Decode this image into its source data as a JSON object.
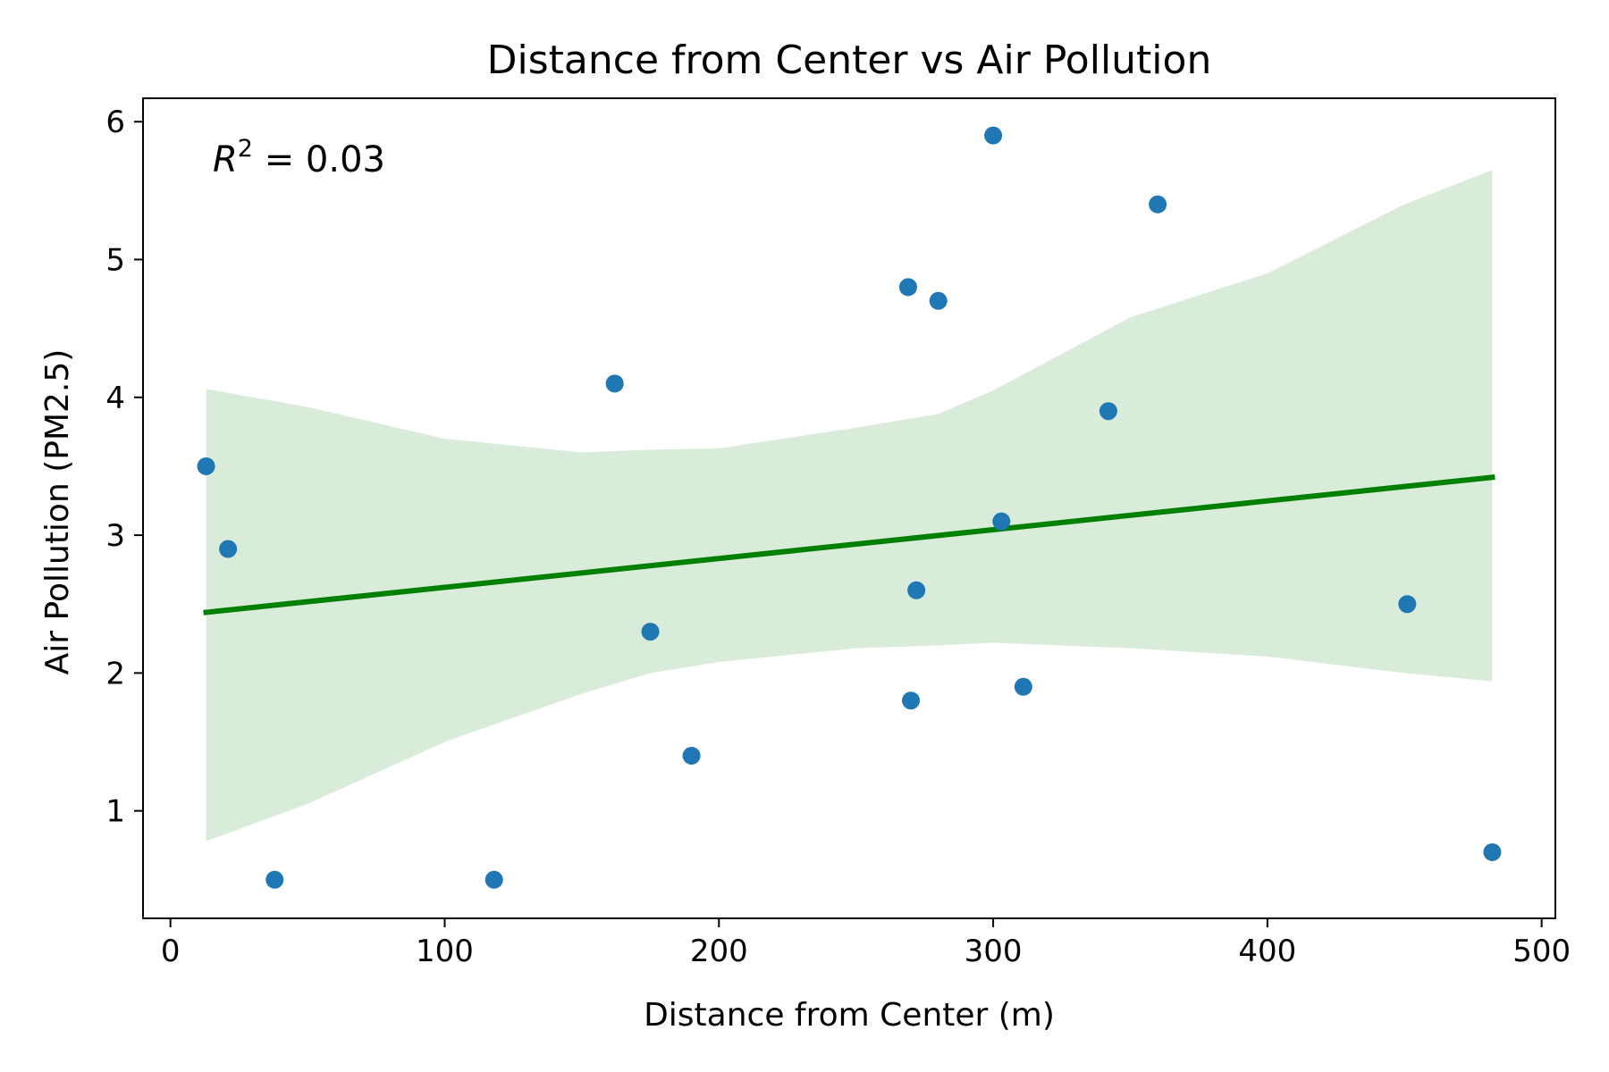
{
  "chart_data": {
    "type": "scatter",
    "title": "Distance from Center vs Air Pollution",
    "xlabel": "Distance from Center (m)",
    "ylabel": "Air Pollution (PM2.5)",
    "xlim": [
      -10,
      505
    ],
    "ylim": [
      0.22,
      6.17
    ],
    "xticks": [
      0,
      100,
      200,
      300,
      400,
      500
    ],
    "yticks": [
      1,
      2,
      3,
      4,
      5,
      6
    ],
    "annotation": {
      "prefix": "R",
      "superscript": "2",
      "value_text": " = 0.03"
    },
    "points": [
      {
        "x": 13,
        "y": 3.5
      },
      {
        "x": 21,
        "y": 2.9
      },
      {
        "x": 38,
        "y": 0.5
      },
      {
        "x": 118,
        "y": 0.5
      },
      {
        "x": 162,
        "y": 4.1
      },
      {
        "x": 175,
        "y": 2.3
      },
      {
        "x": 190,
        "y": 1.4
      },
      {
        "x": 269,
        "y": 4.8
      },
      {
        "x": 270,
        "y": 1.8
      },
      {
        "x": 272,
        "y": 2.6
      },
      {
        "x": 280,
        "y": 4.7
      },
      {
        "x": 300,
        "y": 5.9
      },
      {
        "x": 303,
        "y": 3.1
      },
      {
        "x": 311,
        "y": 1.9
      },
      {
        "x": 342,
        "y": 3.9
      },
      {
        "x": 360,
        "y": 5.4
      },
      {
        "x": 451,
        "y": 2.5
      },
      {
        "x": 482,
        "y": 0.7
      }
    ],
    "regression": {
      "x": [
        13,
        482
      ],
      "y": [
        2.44,
        3.42
      ]
    },
    "confidence_band": {
      "x": [
        13,
        50,
        100,
        150,
        175,
        200,
        250,
        280,
        300,
        350,
        400,
        450,
        482
      ],
      "upper": [
        4.06,
        3.93,
        3.7,
        3.6,
        3.62,
        3.63,
        3.78,
        3.88,
        4.05,
        4.58,
        4.9,
        5.4,
        5.65
      ],
      "lower": [
        0.78,
        1.05,
        1.5,
        1.85,
        2.0,
        2.08,
        2.18,
        2.2,
        2.22,
        2.18,
        2.12,
        2.0,
        1.94
      ]
    },
    "colors": {
      "points": "#1f77b4",
      "line": "#008000",
      "band": "#d9ecd9",
      "axes": "#000000"
    },
    "grid": false,
    "legend": "none"
  }
}
